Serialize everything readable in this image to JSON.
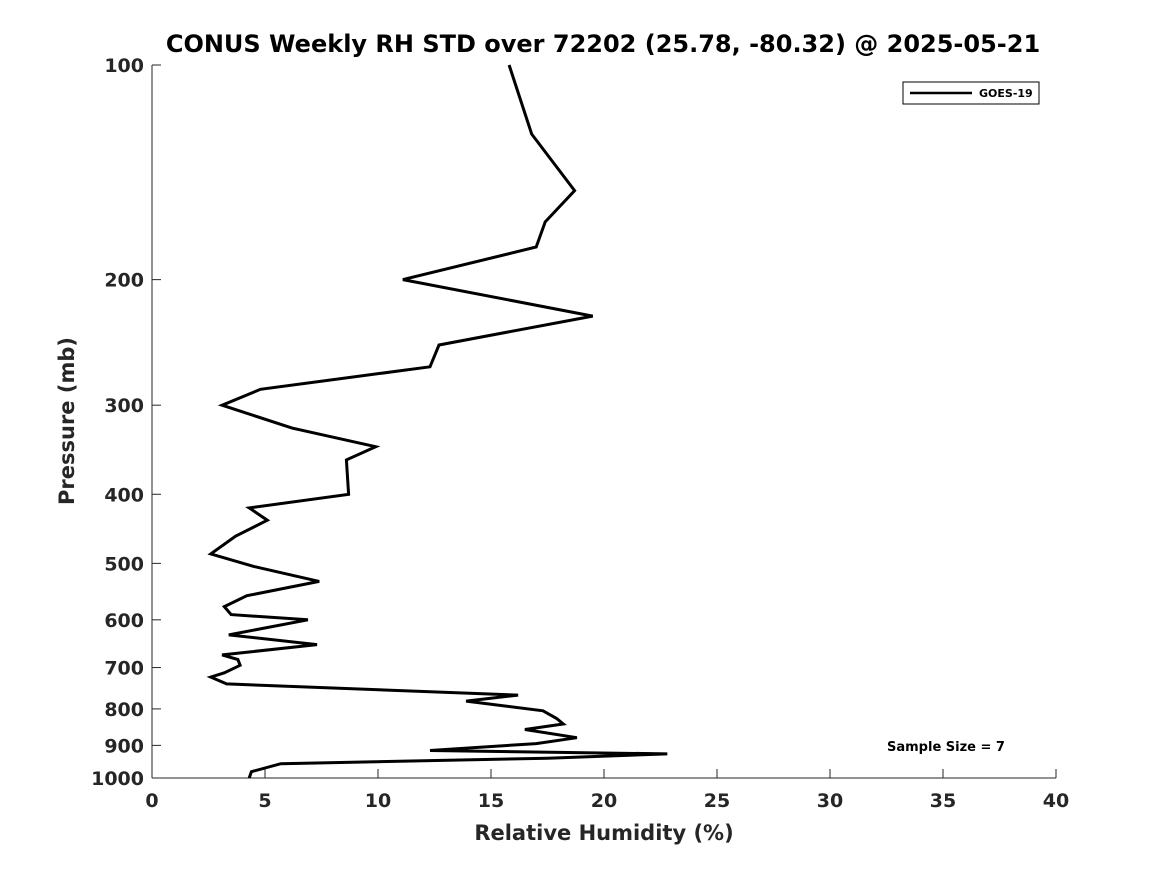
{
  "chart_data": {
    "type": "line",
    "title": "CONUS Weekly RH STD over 72202 (25.78, -80.32) @ 2025-05-21",
    "xlabel": "Relative Humidity (%)",
    "ylabel": "Pressure (mb)",
    "xlim": [
      0,
      40
    ],
    "ylim": [
      100,
      1000
    ],
    "yscale": "log",
    "y_reversed": true,
    "grid": false,
    "legend_position": "top-right",
    "x_ticks": [
      "0",
      "5",
      "10",
      "15",
      "20",
      "25",
      "30",
      "35",
      "40"
    ],
    "y_ticks": [
      "100",
      "200",
      "300",
      "400",
      "500",
      "600",
      "700",
      "800",
      "900",
      "1000"
    ],
    "annotation": "Sample Size = 7",
    "series": [
      {
        "name": "GOES-19",
        "color": "#000000",
        "points": [
          [
            15.8,
            100
          ],
          [
            16.8,
            125
          ],
          [
            18.7,
            150
          ],
          [
            17.4,
            166
          ],
          [
            17.0,
            180
          ],
          [
            11.1,
            200
          ],
          [
            19.5,
            225
          ],
          [
            12.7,
            247
          ],
          [
            12.3,
            265
          ],
          [
            4.8,
            285
          ],
          [
            3.1,
            300
          ],
          [
            6.2,
            323
          ],
          [
            9.9,
            343
          ],
          [
            8.6,
            358
          ],
          [
            8.7,
            400
          ],
          [
            4.3,
            418
          ],
          [
            5.1,
            435
          ],
          [
            3.7,
            458
          ],
          [
            2.6,
            485
          ],
          [
            4.5,
            505
          ],
          [
            7.4,
            530
          ],
          [
            4.2,
            555
          ],
          [
            3.2,
            575
          ],
          [
            3.5,
            590
          ],
          [
            6.9,
            600
          ],
          [
            3.4,
            630
          ],
          [
            7.3,
            650
          ],
          [
            3.1,
            672
          ],
          [
            3.8,
            682
          ],
          [
            3.9,
            695
          ],
          [
            3.2,
            712
          ],
          [
            2.6,
            722
          ],
          [
            3.3,
            738
          ],
          [
            16.2,
            765
          ],
          [
            13.9,
            780
          ],
          [
            17.3,
            805
          ],
          [
            17.9,
            825
          ],
          [
            18.2,
            840
          ],
          [
            16.5,
            855
          ],
          [
            18.8,
            878
          ],
          [
            17.0,
            895
          ],
          [
            12.3,
            915
          ],
          [
            22.8,
            925
          ],
          [
            17.5,
            938
          ],
          [
            5.7,
            955
          ],
          [
            4.4,
            980
          ],
          [
            4.3,
            1000
          ]
        ]
      }
    ]
  }
}
